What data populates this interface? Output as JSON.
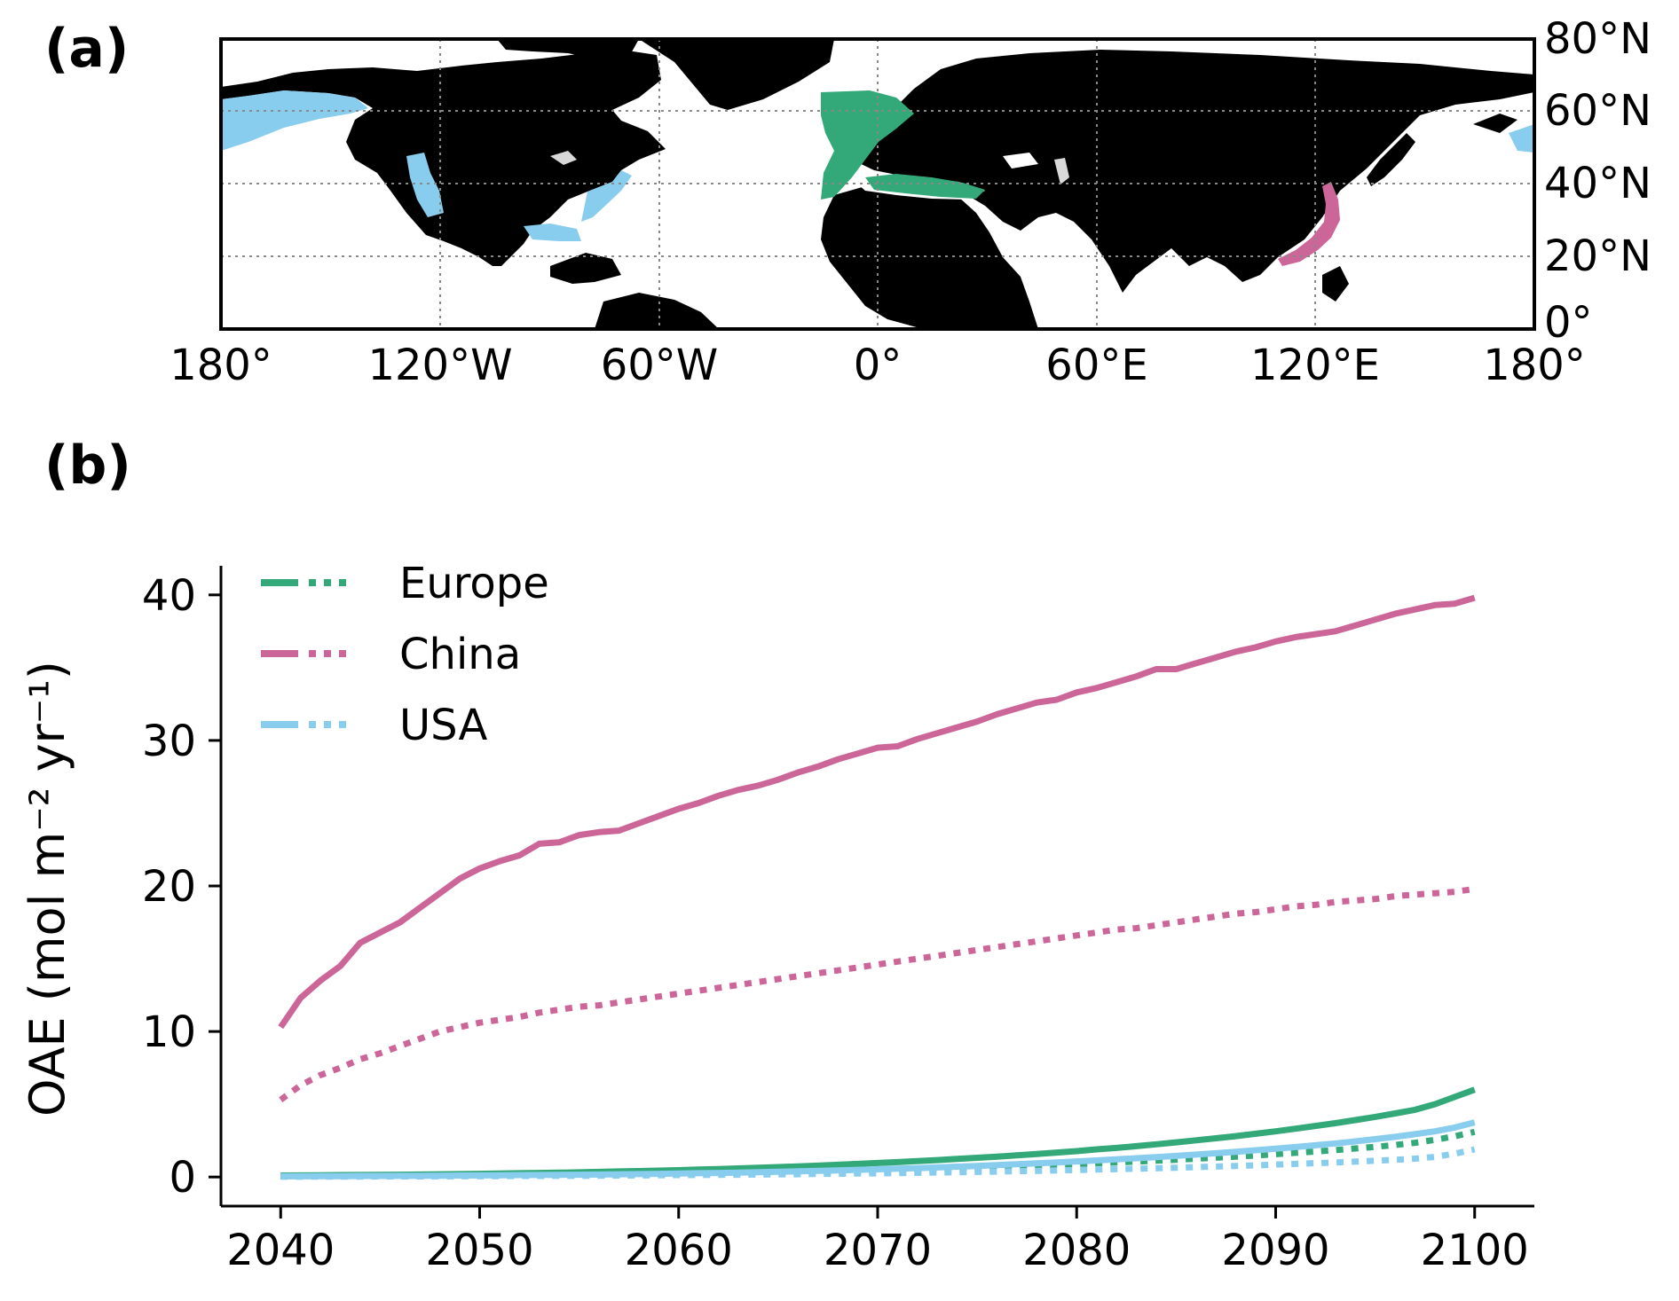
{
  "panels": {
    "a_label": "(a)",
    "b_label": "(b)"
  },
  "map": {
    "lon_ticks": [
      "180°",
      "120°W",
      "60°W",
      "0°",
      "60°E",
      "120°E",
      "180°"
    ],
    "lat_ticks": [
      "80°N",
      "60°N",
      "40°N",
      "20°N",
      "0°"
    ],
    "lon_range": [
      -180,
      180
    ],
    "lat_range": [
      0,
      80
    ],
    "grid": "dotted",
    "land_color": "#000000",
    "ocean_color": "#ffffff",
    "lake_color": "#d9d9d9",
    "regions": [
      {
        "name": "USA",
        "color": "#88CCEE"
      },
      {
        "name": "Europe",
        "color": "#33A878"
      },
      {
        "name": "China",
        "color": "#CC6699"
      }
    ]
  },
  "chart_data": {
    "type": "line",
    "title": "",
    "xlabel": "",
    "ylabel": "OAE (mol m⁻² yr⁻¹)",
    "xlim": [
      2037,
      2103
    ],
    "ylim": [
      -2,
      42
    ],
    "xticks": [
      "2040",
      "2050",
      "2060",
      "2070",
      "2080",
      "2090",
      "2100"
    ],
    "yticks": [
      "0",
      "10",
      "20",
      "30",
      "40"
    ],
    "legend": {
      "placement": "top-left",
      "entries": [
        {
          "label": "Europe",
          "color": "#33A878"
        },
        {
          "label": "China",
          "color": "#CC6699"
        },
        {
          "label": "USA",
          "color": "#88CCEE"
        }
      ]
    },
    "x": [
      2040,
      2041,
      2042,
      2043,
      2044,
      2045,
      2046,
      2047,
      2048,
      2049,
      2050,
      2051,
      2052,
      2053,
      2054,
      2055,
      2056,
      2057,
      2058,
      2059,
      2060,
      2061,
      2062,
      2063,
      2064,
      2065,
      2066,
      2067,
      2068,
      2069,
      2070,
      2071,
      2072,
      2073,
      2074,
      2075,
      2076,
      2077,
      2078,
      2079,
      2080,
      2081,
      2082,
      2083,
      2084,
      2085,
      2086,
      2087,
      2088,
      2089,
      2090,
      2091,
      2092,
      2093,
      2094,
      2095,
      2096,
      2097,
      2098,
      2099,
      2100
    ],
    "series": [
      {
        "region": "China",
        "style": "solid",
        "color": "#CC6699",
        "values": [
          10.3,
          12.3,
          13.5,
          14.5,
          16.1,
          16.8,
          17.5,
          18.5,
          19.5,
          20.5,
          21.2,
          21.7,
          22.1,
          22.9,
          23.0,
          23.5,
          23.7,
          23.8,
          24.3,
          24.8,
          25.3,
          25.7,
          26.2,
          26.6,
          26.9,
          27.3,
          27.8,
          28.2,
          28.7,
          29.1,
          29.5,
          29.6,
          30.1,
          30.5,
          30.9,
          31.3,
          31.8,
          32.2,
          32.6,
          32.8,
          33.3,
          33.6,
          34.0,
          34.4,
          34.9,
          34.9,
          35.3,
          35.7,
          36.1,
          36.4,
          36.8,
          37.1,
          37.3,
          37.5,
          37.9,
          38.3,
          38.7,
          39.0,
          39.3,
          39.4,
          39.8
        ]
      },
      {
        "region": "China",
        "style": "dotted",
        "color": "#CC6699",
        "values": [
          5.3,
          6.3,
          7.0,
          7.5,
          8.1,
          8.5,
          9.0,
          9.5,
          10.0,
          10.3,
          10.6,
          10.8,
          11.0,
          11.3,
          11.5,
          11.7,
          11.8,
          12.0,
          12.2,
          12.4,
          12.6,
          12.8,
          13.0,
          13.2,
          13.4,
          13.6,
          13.8,
          14.0,
          14.2,
          14.4,
          14.6,
          14.8,
          15.0,
          15.2,
          15.4,
          15.6,
          15.8,
          16.0,
          16.2,
          16.4,
          16.6,
          16.8,
          17.0,
          17.1,
          17.3,
          17.5,
          17.7,
          17.9,
          18.1,
          18.2,
          18.4,
          18.6,
          18.7,
          18.9,
          19.0,
          19.1,
          19.3,
          19.4,
          19.5,
          19.6,
          19.8
        ]
      },
      {
        "region": "Europe",
        "style": "solid",
        "color": "#33A878",
        "values": [
          0.1,
          0.11,
          0.12,
          0.13,
          0.14,
          0.15,
          0.16,
          0.17,
          0.19,
          0.2,
          0.22,
          0.24,
          0.26,
          0.28,
          0.3,
          0.32,
          0.35,
          0.38,
          0.41,
          0.44,
          0.47,
          0.51,
          0.55,
          0.59,
          0.63,
          0.68,
          0.73,
          0.78,
          0.84,
          0.9,
          0.96,
          1.02,
          1.09,
          1.16,
          1.24,
          1.32,
          1.4,
          1.49,
          1.58,
          1.68,
          1.78,
          1.9,
          2.0,
          2.12,
          2.25,
          2.38,
          2.52,
          2.66,
          2.81,
          2.97,
          3.14,
          3.32,
          3.51,
          3.7,
          3.91,
          4.13,
          4.37,
          4.62,
          5.0,
          5.5,
          6.0
        ]
      },
      {
        "region": "Europe",
        "style": "dotted",
        "color": "#33A878",
        "values": [
          0.05,
          0.05,
          0.06,
          0.06,
          0.07,
          0.07,
          0.08,
          0.09,
          0.09,
          0.1,
          0.11,
          0.12,
          0.13,
          0.14,
          0.15,
          0.16,
          0.17,
          0.19,
          0.2,
          0.22,
          0.23,
          0.25,
          0.27,
          0.29,
          0.31,
          0.34,
          0.36,
          0.39,
          0.42,
          0.45,
          0.48,
          0.51,
          0.55,
          0.58,
          0.62,
          0.66,
          0.7,
          0.75,
          0.79,
          0.84,
          0.89,
          0.95,
          1.0,
          1.06,
          1.12,
          1.19,
          1.26,
          1.33,
          1.4,
          1.48,
          1.57,
          1.66,
          1.75,
          1.85,
          1.96,
          2.07,
          2.2,
          2.35,
          2.55,
          2.8,
          3.1
        ]
      },
      {
        "region": "USA",
        "style": "solid",
        "color": "#88CCEE",
        "values": [
          0.05,
          0.05,
          0.06,
          0.06,
          0.07,
          0.07,
          0.08,
          0.08,
          0.09,
          0.1,
          0.11,
          0.12,
          0.13,
          0.14,
          0.15,
          0.16,
          0.17,
          0.19,
          0.2,
          0.22,
          0.24,
          0.26,
          0.28,
          0.3,
          0.33,
          0.36,
          0.39,
          0.42,
          0.45,
          0.49,
          0.53,
          0.57,
          0.61,
          0.66,
          0.71,
          0.76,
          0.82,
          0.88,
          0.94,
          1.0,
          1.07,
          1.14,
          1.21,
          1.29,
          1.37,
          1.45,
          1.54,
          1.63,
          1.73,
          1.84,
          1.95,
          2.06,
          2.18,
          2.31,
          2.45,
          2.6,
          2.76,
          2.94,
          3.14,
          3.4,
          3.75
        ]
      },
      {
        "region": "USA",
        "style": "dotted",
        "color": "#88CCEE",
        "values": [
          0.02,
          0.02,
          0.03,
          0.03,
          0.03,
          0.04,
          0.04,
          0.04,
          0.05,
          0.05,
          0.06,
          0.06,
          0.07,
          0.07,
          0.08,
          0.08,
          0.09,
          0.1,
          0.11,
          0.12,
          0.13,
          0.14,
          0.15,
          0.16,
          0.17,
          0.18,
          0.19,
          0.21,
          0.22,
          0.24,
          0.25,
          0.27,
          0.29,
          0.31,
          0.33,
          0.35,
          0.37,
          0.4,
          0.42,
          0.45,
          0.48,
          0.51,
          0.54,
          0.57,
          0.6,
          0.64,
          0.68,
          0.72,
          0.76,
          0.8,
          0.85,
          0.9,
          0.95,
          1.0,
          1.06,
          1.12,
          1.18,
          1.26,
          1.38,
          1.6,
          1.9
        ]
      }
    ]
  }
}
